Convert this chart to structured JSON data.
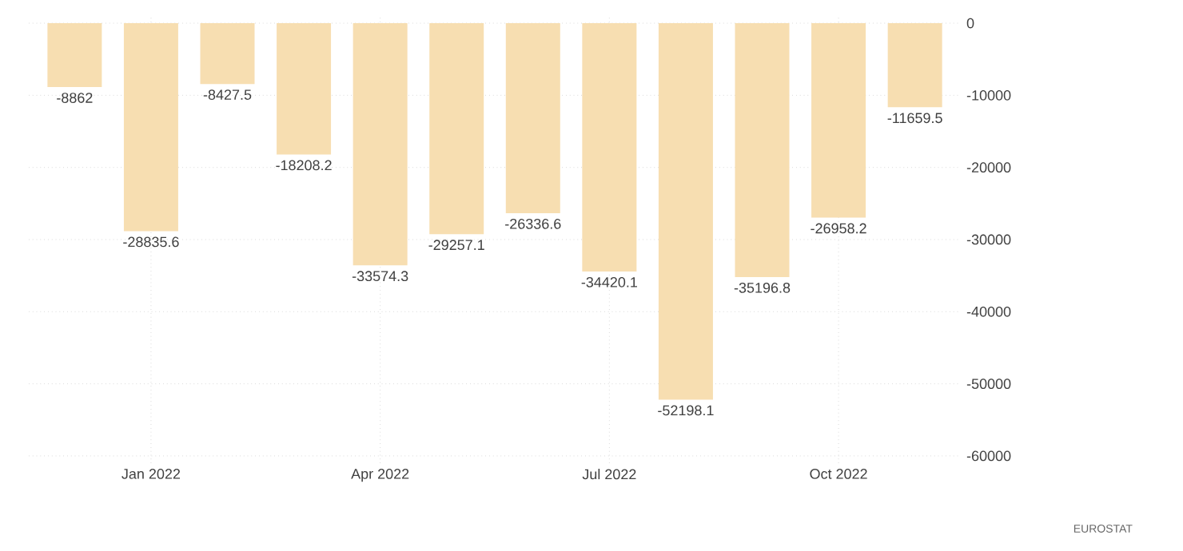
{
  "chart_data": {
    "type": "bar",
    "categories": [
      null,
      "Jan 2022",
      null,
      null,
      "Apr 2022",
      null,
      null,
      "Jul 2022",
      null,
      null,
      "Oct 2022",
      null
    ],
    "values": [
      -8862,
      -28835.6,
      -8427.5,
      -18208.2,
      -33574.3,
      -29257.1,
      -26336.6,
      -34420.1,
      -52198.1,
      -35196.8,
      -26958.2,
      -11659.5
    ],
    "color": "#f7deb1",
    "data_labels": true,
    "grid": true,
    "ylim": [
      -61000,
      1000
    ],
    "yticks": [
      0,
      -10000,
      -20000,
      -30000,
      -40000,
      -50000,
      -60000
    ],
    "annotations": [
      "EUROSTAT"
    ]
  }
}
